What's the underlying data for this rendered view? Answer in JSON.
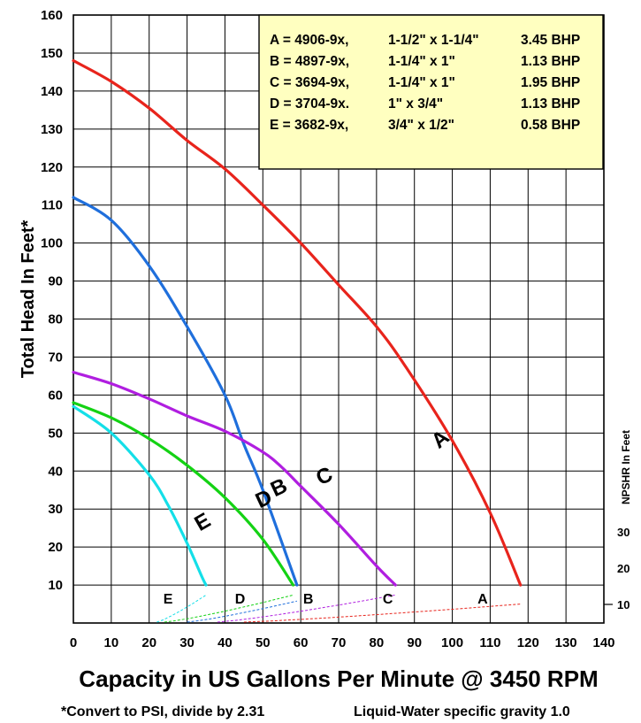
{
  "chart_data": {
    "type": "line",
    "ylabel": "Total Head In Feet*",
    "xlabel": "Capacity in US Gallons Per Minute @ 3450 RPM",
    "note_left": "*Convert to PSI, divide by 2.31",
    "note_right": "Liquid-Water specific gravity 1.0",
    "xlim": [
      0,
      140
    ],
    "ylim": [
      0,
      160
    ],
    "x_ticks": [
      "0",
      "10",
      "20",
      "30",
      "40",
      "50",
      "60",
      "70",
      "80",
      "90",
      "100",
      "110",
      "120",
      "130",
      "140"
    ],
    "y_ticks": [
      "10",
      "20",
      "30",
      "40",
      "50",
      "60",
      "70",
      "80",
      "90",
      "100",
      "110",
      "120",
      "130",
      "140",
      "150",
      "160"
    ],
    "grid": true,
    "npshr_axis": {
      "label": "NPSHR In Feet",
      "ticks": [
        "10",
        "20",
        "30"
      ]
    },
    "legend": {
      "placement": "top-right",
      "rows": [
        {
          "key": "A",
          "model": "4906-9x,",
          "size": "1-1/2\" x 1-1/4\"",
          "bhp": "3.45 BHP"
        },
        {
          "key": "B",
          "model": "4897-9x,",
          "size": "1-1/4\"  x 1\"",
          "bhp": "1.13 BHP"
        },
        {
          "key": "C",
          "model": "3694-9x,",
          "size": "1-1/4\"  x 1\"",
          "bhp": "1.95 BHP"
        },
        {
          "key": "D",
          "model": "3704-9x.",
          "size": "1\" x 3/4\"",
          "bhp": "1.13 BHP"
        },
        {
          "key": "E",
          "model": "3682-9x,",
          "size": "3/4\" x 1/2\"",
          "bhp": "0.58 BHP"
        }
      ],
      "bg": "#ffffc0"
    },
    "series": [
      {
        "name": "A",
        "color": "#e8241c",
        "x": [
          0,
          10,
          20,
          30,
          40,
          50,
          60,
          70,
          80,
          88,
          100,
          110,
          118
        ],
        "y": [
          148,
          142.5,
          135.5,
          127,
          119.5,
          110,
          100,
          89,
          78,
          67,
          48,
          29,
          10
        ],
        "label_at": [
          98,
          47
        ],
        "npsh_x": [
          0,
          118
        ],
        "npsh_y": [
          0,
          6
        ]
      },
      {
        "name": "B",
        "color": "#1f6fdc",
        "x": [
          0,
          10,
          20,
          30,
          40,
          45,
          50,
          59
        ],
        "y": [
          112,
          106,
          94,
          78,
          60,
          47,
          35,
          10
        ],
        "label_at": [
          55,
          34
        ],
        "npsh_x": [
          0,
          59
        ],
        "npsh_y": [
          0,
          7
        ]
      },
      {
        "name": "C",
        "color": "#b01ee0",
        "x": [
          0,
          10,
          20,
          30,
          40,
          50,
          55,
          60,
          70,
          80,
          85
        ],
        "y": [
          66,
          63,
          59,
          54.5,
          50.5,
          45,
          41,
          36,
          26,
          15,
          10
        ],
        "label_at": [
          67,
          37
        ],
        "npsh_x": [
          0,
          85
        ],
        "npsh_y": [
          0,
          9
        ]
      },
      {
        "name": "D",
        "color": "#14d214",
        "x": [
          0,
          10,
          20,
          30,
          40,
          50,
          58
        ],
        "y": [
          58,
          54,
          48.5,
          41.5,
          33,
          22,
          10
        ],
        "label_at": [
          51,
          31
        ],
        "npsh_x": [
          0,
          58
        ],
        "npsh_y": [
          0,
          9
        ]
      },
      {
        "name": "E",
        "color": "#14dfe8",
        "x": [
          0,
          10,
          20,
          25,
          30,
          34,
          35
        ],
        "y": [
          57,
          50,
          39,
          31,
          21,
          12,
          10
        ],
        "label_at": [
          35,
          25
        ],
        "npsh_x": [
          0,
          35
        ],
        "npsh_y": [
          0,
          9
        ]
      }
    ],
    "bottom_labels": [
      "E",
      "D",
      "B",
      "C",
      "A"
    ]
  }
}
